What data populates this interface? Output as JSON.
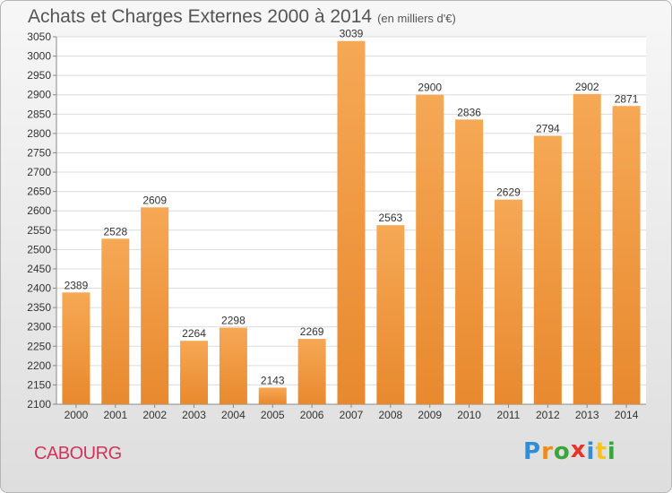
{
  "chart_data": {
    "type": "bar",
    "title": "Achats et Charges Externes 2000 à 2014",
    "subtitle": "(en milliers d'€)",
    "categories": [
      "2000",
      "2001",
      "2002",
      "2003",
      "2004",
      "2005",
      "2006",
      "2007",
      "2008",
      "2009",
      "2010",
      "2011",
      "2012",
      "2013",
      "2014"
    ],
    "values": [
      2389,
      2528,
      2609,
      2264,
      2298,
      2143,
      2269,
      3039,
      2563,
      2900,
      2836,
      2629,
      2794,
      2902,
      2871
    ],
    "ylim": [
      2100,
      3050
    ],
    "ytick_step": 50,
    "grid": true,
    "bar_color": "#e8892e",
    "bar_color_light": "#f6a855"
  },
  "footer": {
    "city": "CABOURG",
    "logo_letters": [
      {
        "ch": "P",
        "color": "#2e8fd6"
      },
      {
        "ch": "r",
        "color": "#f08a1c"
      },
      {
        "ch": "o",
        "color": "#3aa53a"
      },
      {
        "ch": "x",
        "color": "#e8332a"
      },
      {
        "ch": "i",
        "color": "#2e8fd6"
      },
      {
        "ch": "t",
        "color": "#f5c518"
      },
      {
        "ch": "i",
        "color": "#3aa53a"
      }
    ]
  }
}
